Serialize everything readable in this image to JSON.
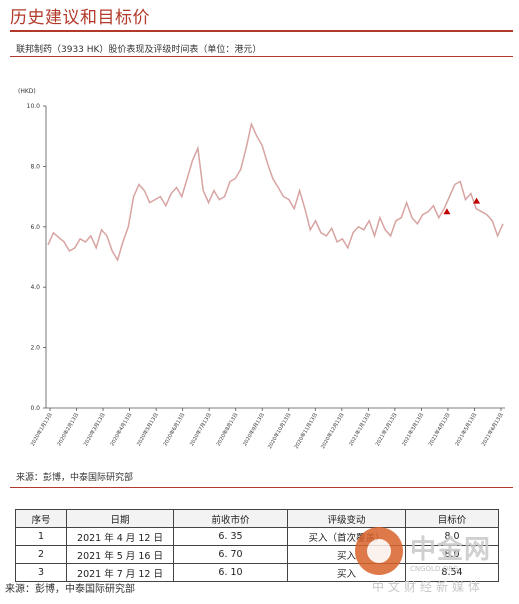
{
  "header": {
    "title": "历史建议和目标价"
  },
  "figure": {
    "caption": "联邦制药（3933 HK）股价表现及评级时间表（单位：港元）",
    "source": "来源：彭博，中泰国际研究部"
  },
  "chart_data": {
    "type": "line",
    "ylabel": "(HKD)",
    "ylim": [
      0,
      10
    ],
    "yticks": [
      "0.0",
      "2.0",
      "4.0",
      "6.0",
      "8.0",
      "10.0"
    ],
    "xticks": [
      "2020年1月13日",
      "2020年2月13日",
      "2020年3月13日",
      "2020年4月13日",
      "2020年5月13日",
      "2020年6月13日",
      "2020年7月13日",
      "2020年8月13日",
      "2020年9月13日",
      "2020年10月13日",
      "2020年11月13日",
      "2020年12月13日",
      "2021年1月13日",
      "2021年2月13日",
      "2021年3月13日",
      "2021年4月13日",
      "2021年5月13日",
      "2021年6月13日"
    ],
    "series": [
      {
        "values": [
          5.4,
          5.8,
          5.65,
          5.5,
          5.2,
          5.3,
          5.6,
          5.5,
          5.7,
          5.3,
          5.9,
          5.7,
          5.2,
          4.9,
          5.5,
          6.0,
          7.0,
          7.4,
          7.2,
          6.8,
          6.9,
          7.0,
          6.7,
          7.1,
          7.3,
          7.0,
          7.6,
          8.2,
          8.6,
          7.2,
          6.8,
          7.2,
          6.9,
          7.0,
          7.5,
          7.6,
          7.9,
          8.6,
          9.4,
          9.0,
          8.7,
          8.1,
          7.6,
          7.3,
          7.0,
          6.9,
          6.6,
          7.2,
          6.6,
          5.9,
          6.2,
          5.8,
          5.7,
          5.95,
          5.5,
          5.6,
          5.3,
          5.8,
          6.0,
          5.9,
          6.2,
          5.7,
          6.3,
          5.9,
          5.7,
          6.2,
          6.3,
          6.8,
          6.3,
          6.1,
          6.4,
          6.5,
          6.7,
          6.3,
          6.6,
          7.0,
          7.4,
          7.5,
          6.9,
          7.1,
          6.6,
          6.5,
          6.4,
          6.2,
          5.7,
          6.1
        ]
      }
    ],
    "markers": [
      {
        "date": "2021年4月12日",
        "value": 6.35
      },
      {
        "date": "2021年5月16日",
        "value": 6.7
      },
      {
        "date": "2021年7月12日",
        "value": 6.1
      }
    ],
    "line_color": "#d7a4a2",
    "marker_color": "#c00000"
  },
  "table": {
    "headers": [
      "序号",
      "日期",
      "前收市价",
      "评级变动",
      "目标价"
    ],
    "rows": [
      [
        "1",
        "2021 年 4 月 12 日",
        "6. 35",
        "买入（首次覆盖）",
        "8.0"
      ],
      [
        "2",
        "2021 年 5 月 16 日",
        "6. 70",
        "买入",
        "8.0"
      ],
      [
        "3",
        "2021 年 7 月 12 日",
        "6. 10",
        "买入",
        "8.54"
      ]
    ]
  },
  "footer": {
    "source": "来源：彭博，中泰国际研究部"
  },
  "watermark": {
    "brand": "中金网",
    "url": "CNGOLD.ORG",
    "subtitle": "中文财经新媒体"
  }
}
